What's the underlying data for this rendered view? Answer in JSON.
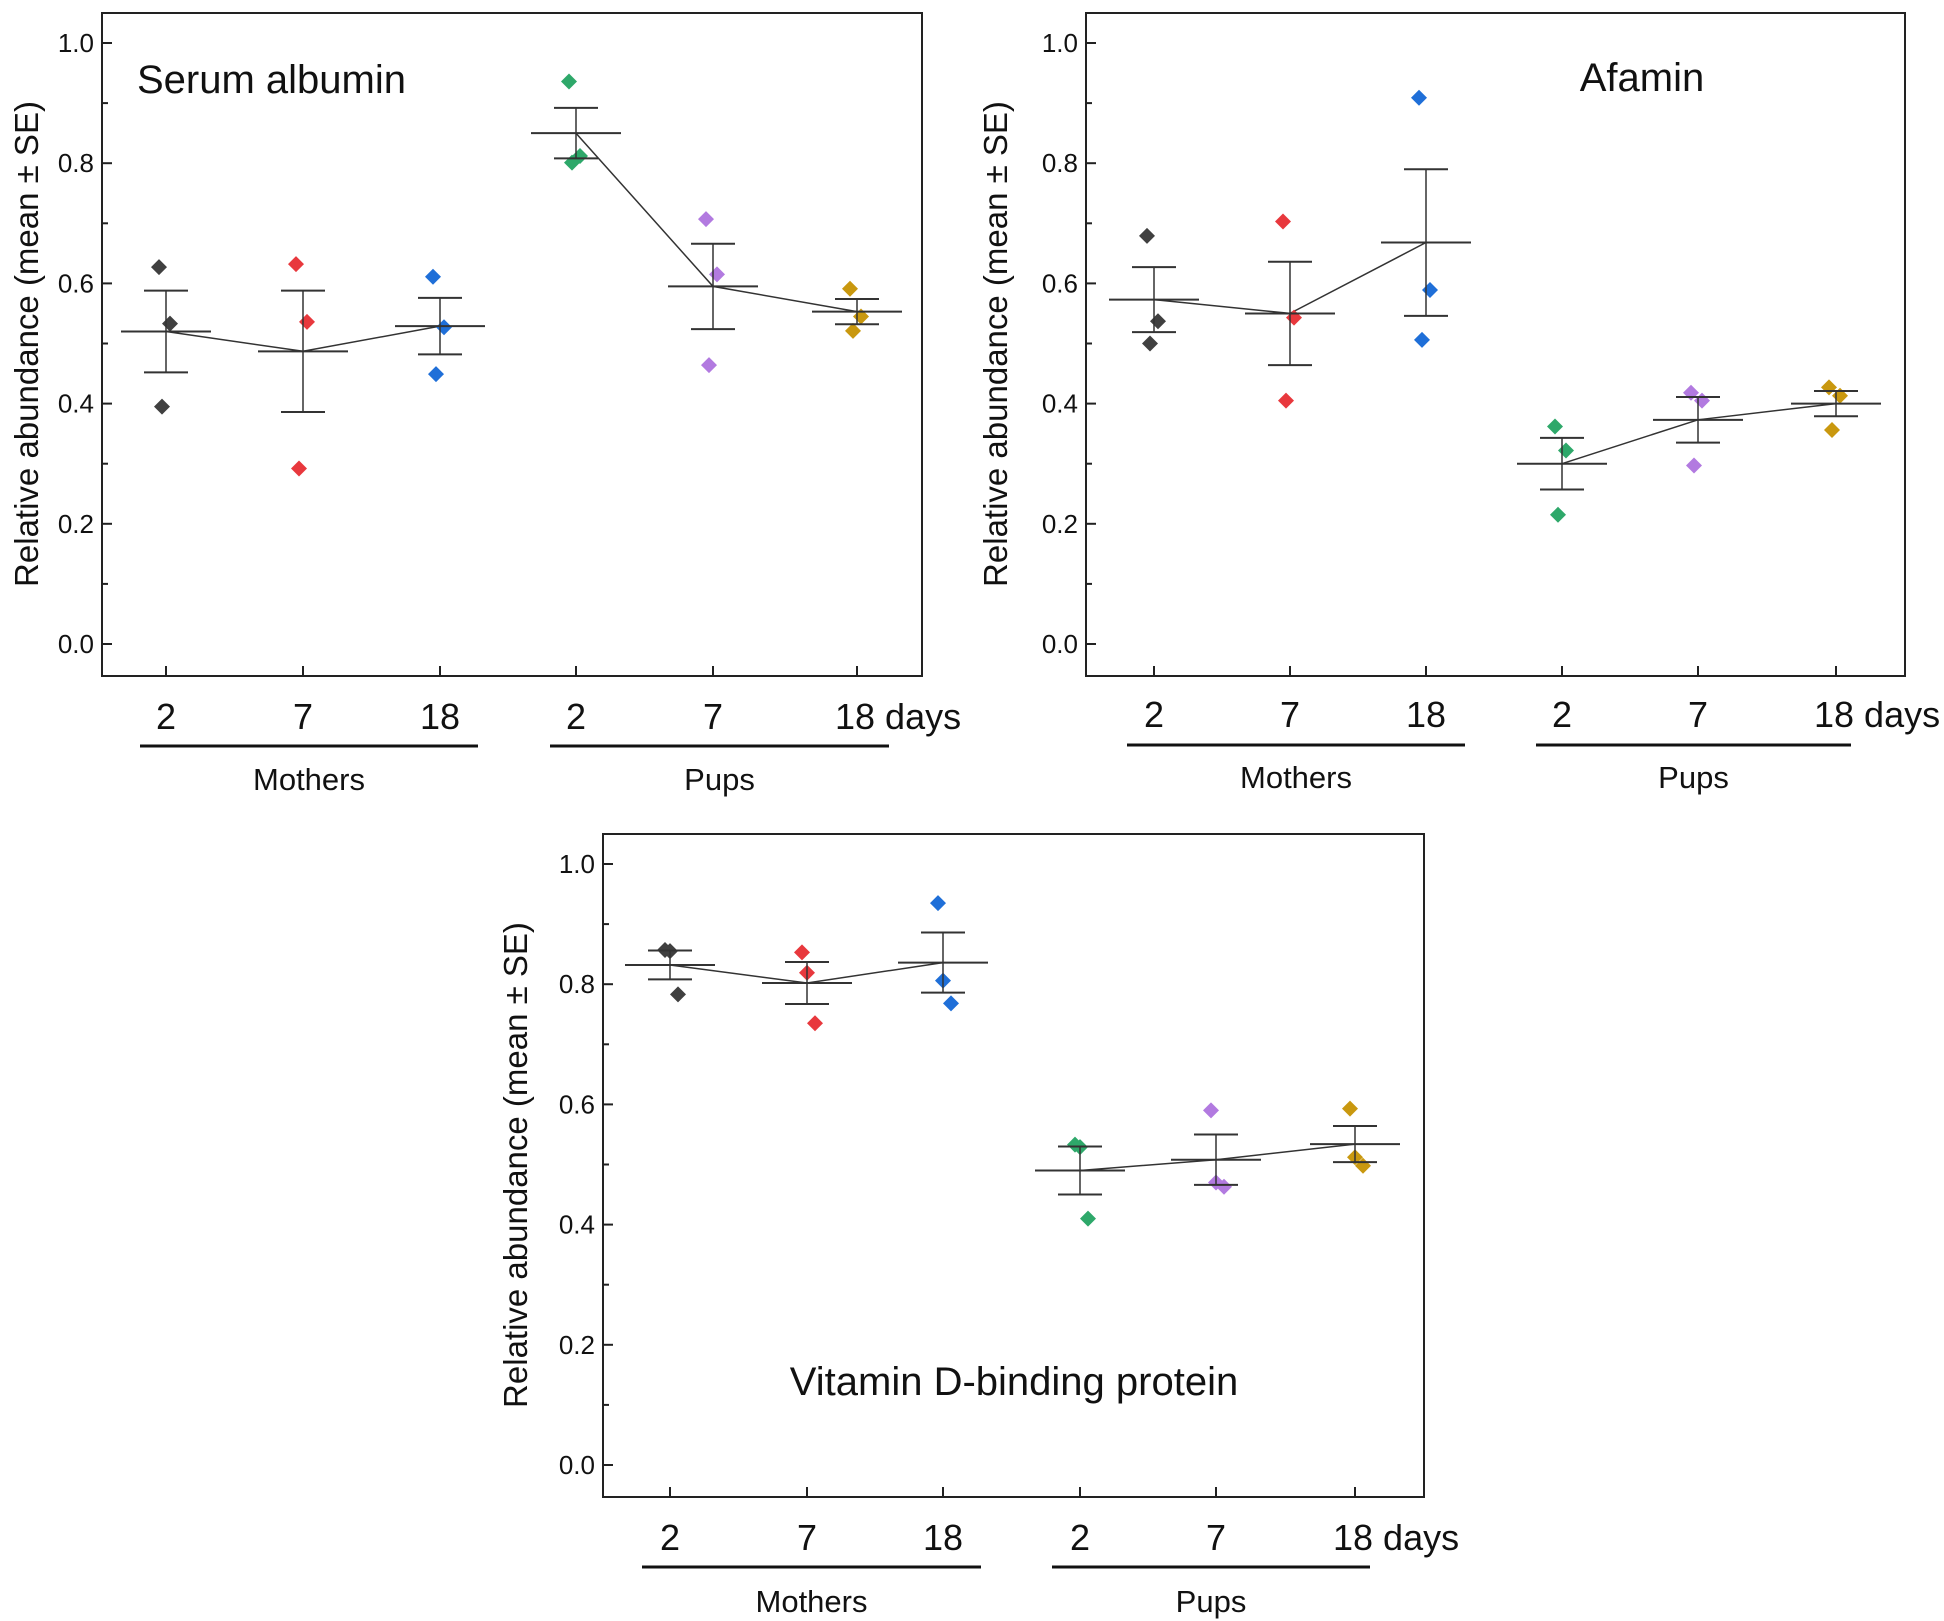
{
  "figure": {
    "ylabel": "Relative abundance (mean ± SE)",
    "groups": [
      "Mothers",
      "Pups"
    ],
    "category_labels": [
      "2",
      "7",
      "18",
      "2",
      "7",
      "18 days"
    ]
  },
  "colors": {
    "mother_2": "#404040",
    "mother_7": "#e8383d",
    "mother_18": "#1f6fd8",
    "pup_2": "#2ea86a",
    "pup_7": "#b27ae0",
    "pup_18": "#c9980f",
    "line": "#333333"
  },
  "chart_data": [
    {
      "type": "scatter",
      "title": "Serum albumin",
      "title_position": "top-left",
      "ylim": [
        0,
        1.0
      ],
      "yticks": [
        "0.0",
        "0.2",
        "0.4",
        "0.6",
        "0.8",
        "1.0"
      ],
      "categories": [
        "2",
        "7",
        "18",
        "2",
        "7",
        "18 days"
      ],
      "groups": [
        "Mothers",
        "Pups"
      ],
      "mean_lines": [
        [
          0,
          1,
          2
        ],
        [
          3,
          4,
          5
        ]
      ],
      "series": [
        {
          "name": "Mothers 2",
          "color": "mother_2",
          "points": [
            0.627,
            0.533,
            0.395
          ],
          "mean": 0.52,
          "se": 0.068
        },
        {
          "name": "Mothers 7",
          "color": "mother_7",
          "points": [
            0.632,
            0.536,
            0.292
          ],
          "mean": 0.487,
          "se": 0.101
        },
        {
          "name": "Mothers 18",
          "color": "mother_18",
          "points": [
            0.611,
            0.527,
            0.449
          ],
          "mean": 0.529,
          "se": 0.047
        },
        {
          "name": "Pups 2",
          "color": "pup_2",
          "points": [
            0.936,
            0.812,
            0.801
          ],
          "mean": 0.85,
          "se": 0.042
        },
        {
          "name": "Pups 7",
          "color": "pup_7",
          "points": [
            0.707,
            0.615,
            0.464
          ],
          "mean": 0.595,
          "se": 0.071
        },
        {
          "name": "Pups 18",
          "color": "pup_18",
          "points": [
            0.591,
            0.545,
            0.521
          ],
          "mean": 0.553,
          "se": 0.021
        }
      ]
    },
    {
      "type": "scatter",
      "title": "Afamin",
      "title_position": "top-right",
      "ylim": [
        0,
        1.0
      ],
      "yticks": [
        "0.0",
        "0.2",
        "0.4",
        "0.6",
        "0.8",
        "1.0"
      ],
      "categories": [
        "2",
        "7",
        "18",
        "2",
        "7",
        "18 days"
      ],
      "groups": [
        "Mothers",
        "Pups"
      ],
      "mean_lines": [
        [
          0,
          1,
          2
        ],
        [
          3,
          4,
          5
        ]
      ],
      "series": [
        {
          "name": "Mothers 2",
          "color": "mother_2",
          "points": [
            0.679,
            0.537,
            0.5
          ],
          "mean": 0.573,
          "se": 0.054
        },
        {
          "name": "Mothers 7",
          "color": "mother_7",
          "points": [
            0.703,
            0.543,
            0.405
          ],
          "mean": 0.55,
          "se": 0.086
        },
        {
          "name": "Mothers 18",
          "color": "mother_18",
          "points": [
            0.909,
            0.589,
            0.506
          ],
          "mean": 0.668,
          "se": 0.122
        },
        {
          "name": "Pups 2",
          "color": "pup_2",
          "points": [
            0.362,
            0.322,
            0.215
          ],
          "mean": 0.3,
          "se": 0.043
        },
        {
          "name": "Pups 7",
          "color": "pup_7",
          "points": [
            0.418,
            0.405,
            0.297
          ],
          "mean": 0.373,
          "se": 0.038
        },
        {
          "name": "Pups 18",
          "color": "pup_18",
          "points": [
            0.427,
            0.413,
            0.356
          ],
          "mean": 0.4,
          "se": 0.021
        }
      ]
    },
    {
      "type": "scatter",
      "title": "Vitamin D-binding protein",
      "title_position": "bottom-center",
      "ylim": [
        0,
        1.0
      ],
      "yticks": [
        "0.0",
        "0.2",
        "0.4",
        "0.6",
        "0.8",
        "1.0"
      ],
      "categories": [
        "2",
        "7",
        "18",
        "2",
        "7",
        "18 days"
      ],
      "groups": [
        "Mothers",
        "Pups"
      ],
      "mean_lines": [
        [
          0,
          1,
          2
        ],
        [
          3,
          4,
          5
        ]
      ],
      "series": [
        {
          "name": "Mothers 2",
          "color": "mother_2",
          "points": [
            0.857,
            0.855,
            0.783
          ],
          "mean": 0.832,
          "se": 0.024
        },
        {
          "name": "Mothers 7",
          "color": "mother_7",
          "points": [
            0.853,
            0.819,
            0.735
          ],
          "mean": 0.802,
          "se": 0.035
        },
        {
          "name": "Mothers 18",
          "color": "mother_18",
          "points": [
            0.935,
            0.806,
            0.768
          ],
          "mean": 0.836,
          "se": 0.05
        },
        {
          "name": "Pups 2",
          "color": "pup_2",
          "points": [
            0.533,
            0.529,
            0.41
          ],
          "mean": 0.49,
          "se": 0.04
        },
        {
          "name": "Pups 7",
          "color": "pup_7",
          "points": [
            0.59,
            0.47,
            0.463
          ],
          "mean": 0.508,
          "se": 0.042
        },
        {
          "name": "Pups 18",
          "color": "pup_18",
          "points": [
            0.593,
            0.512,
            0.498
          ],
          "mean": 0.534,
          "se": 0.03
        }
      ]
    }
  ]
}
